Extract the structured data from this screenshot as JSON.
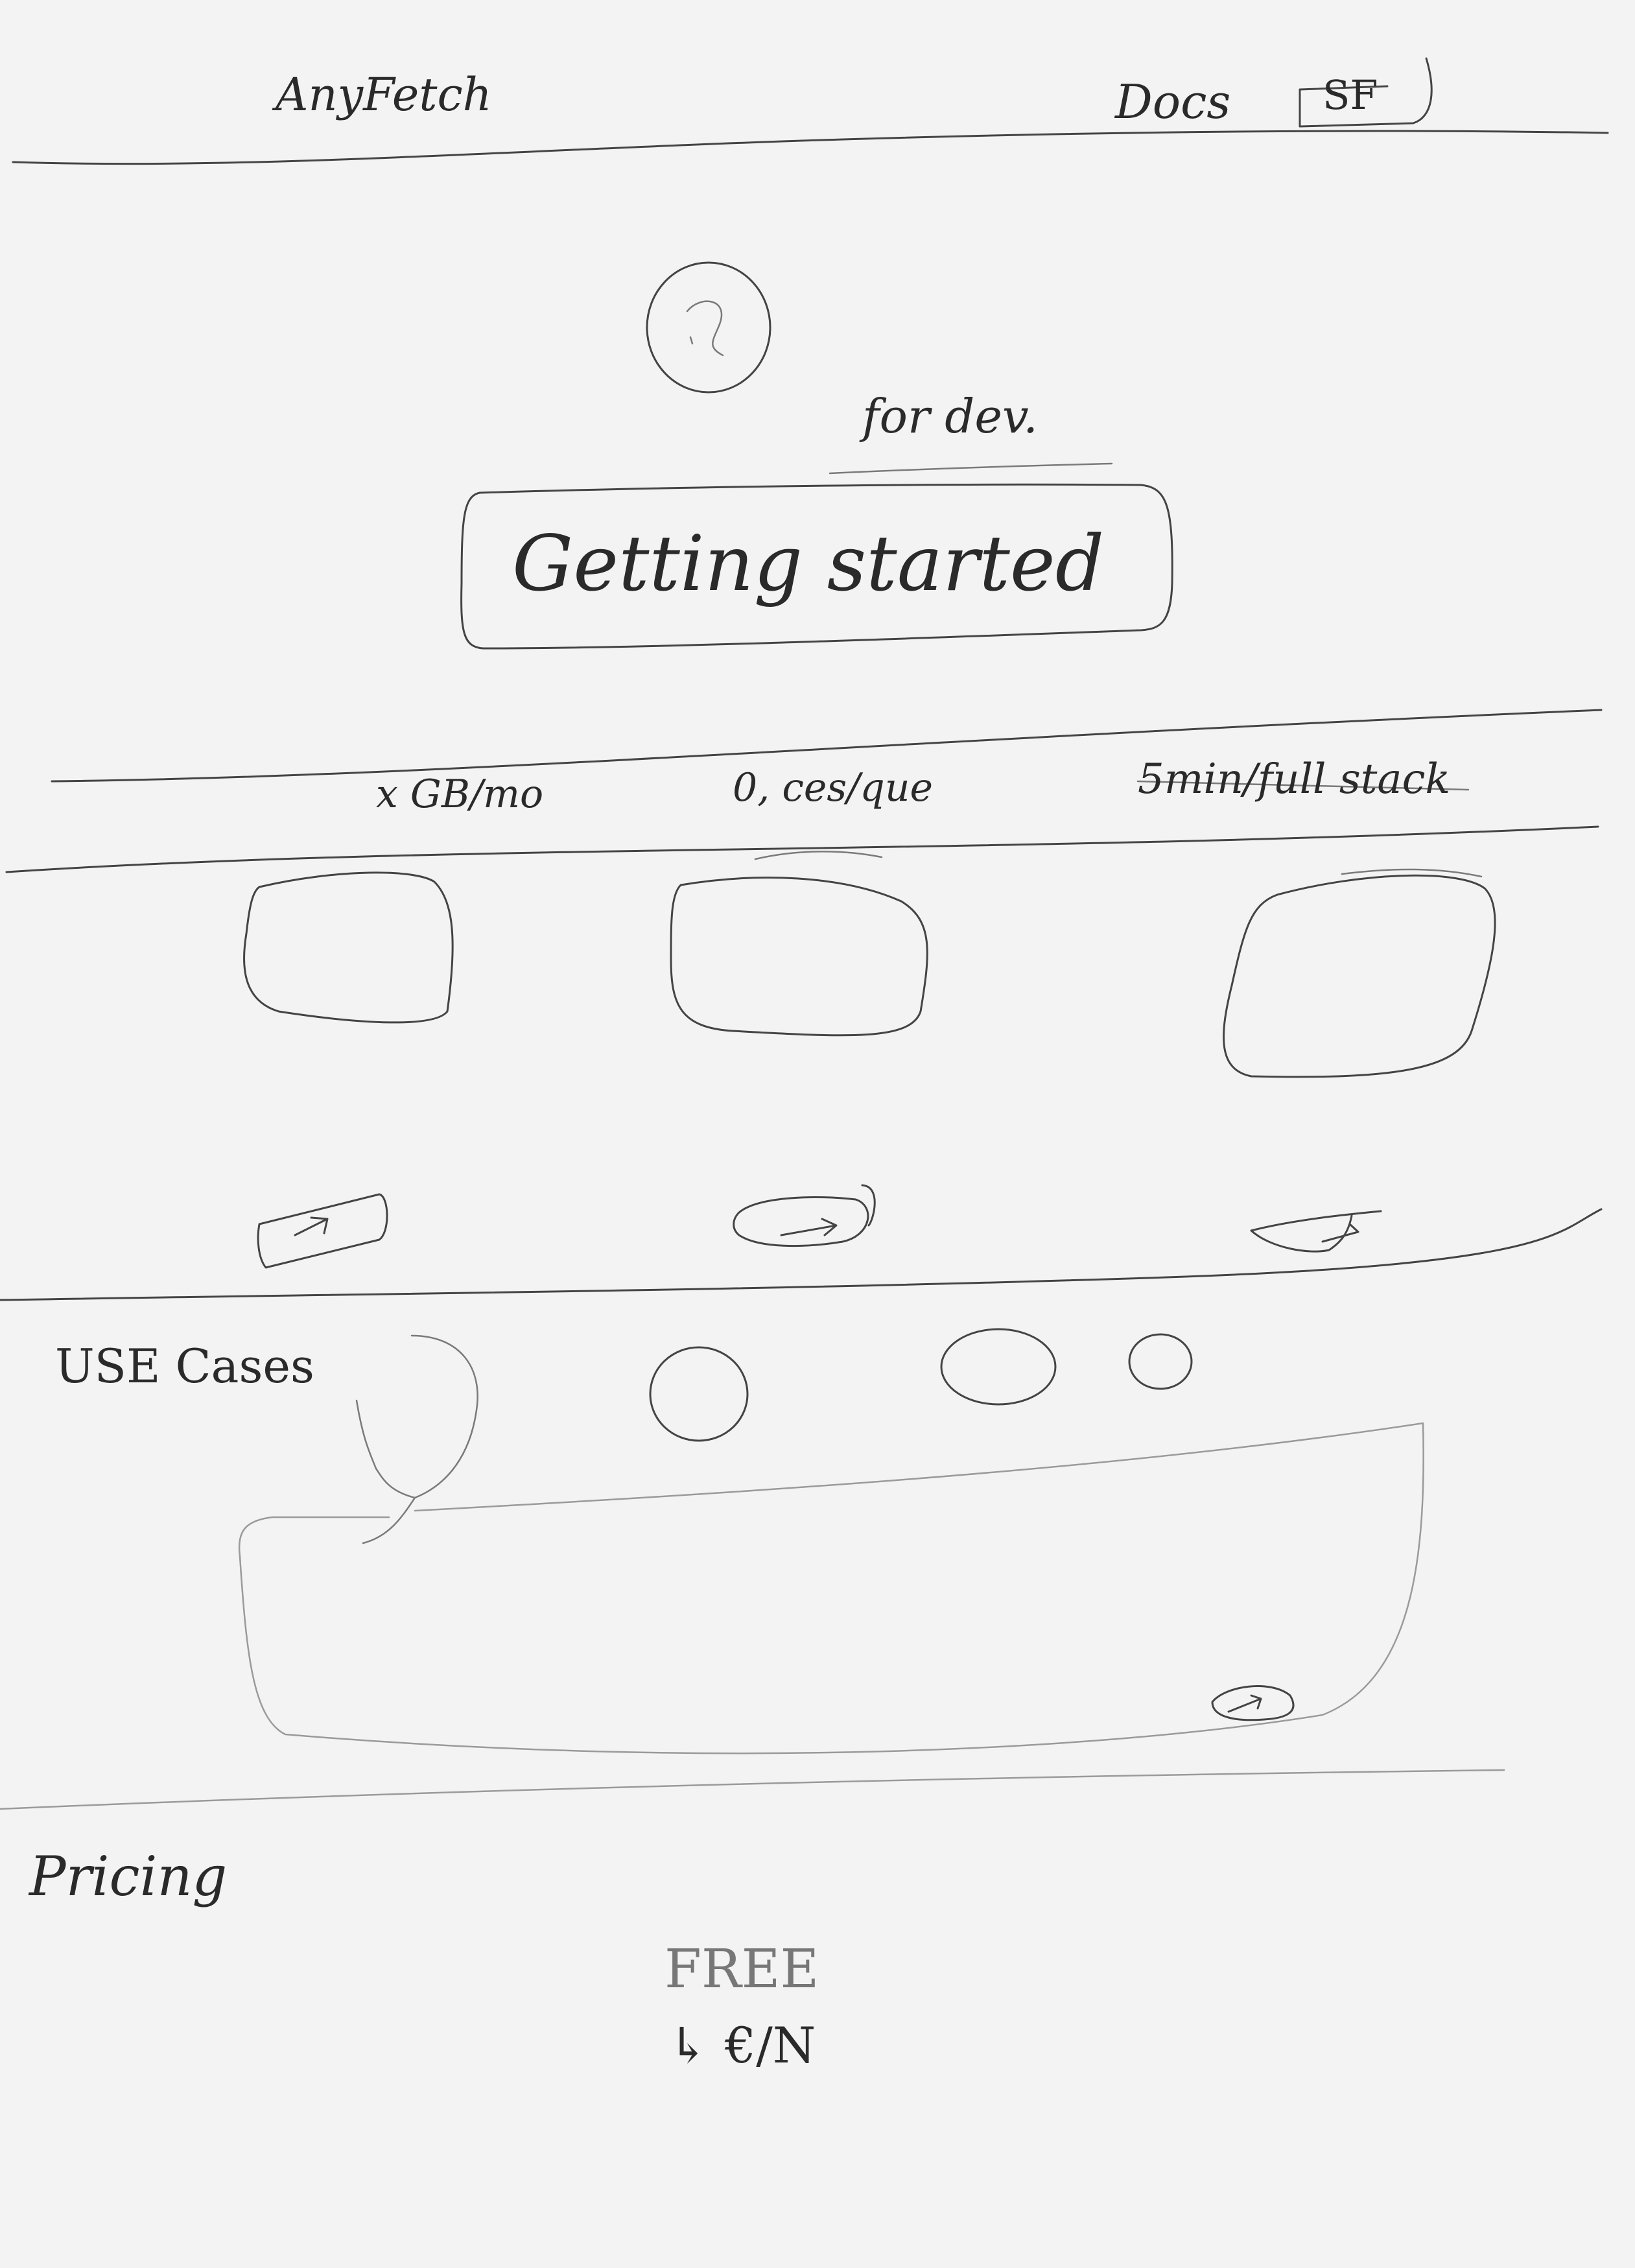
{
  "header": {
    "brand": "AnyFetch",
    "docs_link": "Docs",
    "account_button": "SF"
  },
  "hero": {
    "tagline": "for dev.",
    "cta_label": "Getting started"
  },
  "stats": [
    {
      "label": "x GB/mo"
    },
    {
      "label": "0, ces/que"
    },
    {
      "label": "5min/full stack"
    }
  ],
  "features": [
    {
      "icon": "arrow-icon"
    },
    {
      "icon": "arrow-icon"
    },
    {
      "icon": "arrow-icon"
    }
  ],
  "use_cases": {
    "title": "USE Cases"
  },
  "pricing": {
    "title": "Pricing",
    "plan_label": "FREE",
    "plan_sub": "↳ €/N"
  },
  "colors": {
    "paper": "#f3f3f3",
    "pencil": "#444444"
  }
}
